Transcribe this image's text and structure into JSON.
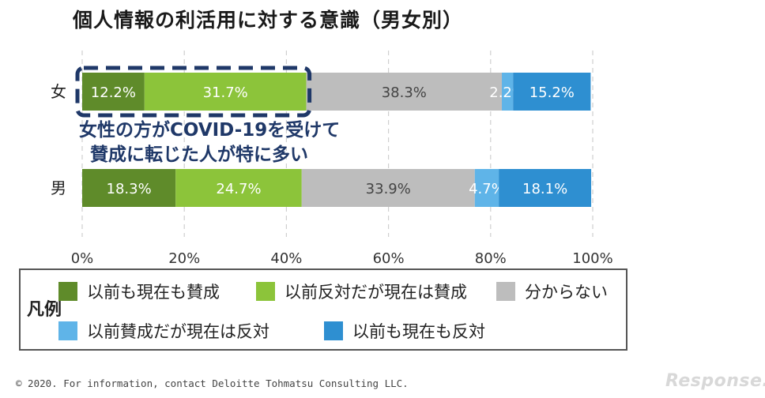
{
  "chart_data": {
    "type": "bar",
    "orientation": "horizontal",
    "stacked": true,
    "title": "個人情報の利活用に対する意識（男女別）",
    "categories": [
      "女",
      "男"
    ],
    "series": [
      {
        "name": "以前も現在も賛成",
        "color": "#5f8b2a",
        "values": [
          12.2,
          18.3
        ],
        "labels": [
          "12.2%",
          "18.3%"
        ]
      },
      {
        "name": "以前反対だが現在は賛成",
        "color": "#8cc43a",
        "values": [
          31.7,
          24.7
        ],
        "labels": [
          "31.7%",
          "24.7%"
        ]
      },
      {
        "name": "分からない",
        "color": "#bdbdbd",
        "values": [
          38.3,
          33.9
        ],
        "labels": [
          "38.3%",
          "33.9%"
        ]
      },
      {
        "name": "以前賛成だが現在は反対",
        "color": "#5fb4e8",
        "values": [
          2.2,
          4.7
        ],
        "labels": [
          "2.2%",
          "4.7%"
        ]
      },
      {
        "name": "以前も現在も反対",
        "color": "#2e8fd1",
        "values": [
          15.2,
          18.1
        ],
        "labels": [
          "15.2%",
          "18.1%"
        ]
      }
    ],
    "xlim": [
      0,
      100
    ],
    "xticks": [
      "0%",
      "20%",
      "40%",
      "60%",
      "80%",
      "100%"
    ],
    "grid": "vertical-dashed",
    "legend_title": "凡例",
    "legend_position": "bottom"
  },
  "annotation": {
    "line1": "女性の方がCOVID-19を受けて",
    "line2": "賛成に転じた人が特に多い",
    "color": "#1f3868"
  },
  "footer": {
    "copyright": "© 2020. For information, contact Deloitte Tohmatsu Consulting LLC.",
    "logo": "Response."
  }
}
